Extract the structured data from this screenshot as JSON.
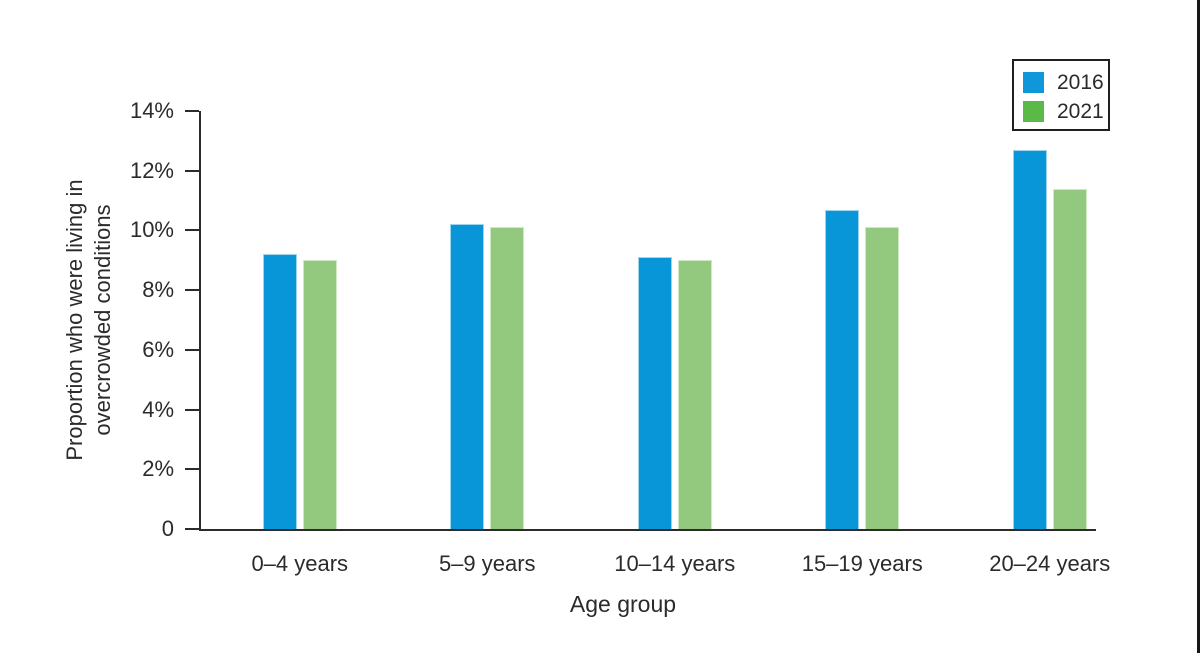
{
  "chart_data": {
    "type": "bar",
    "title": "",
    "categories": [
      "0–4 years",
      "5–9 years",
      "10–14 years",
      "15–19 years",
      "20–24 years"
    ],
    "series": [
      {
        "name": "2016",
        "color": "#0996d8",
        "edge_color": "#9fd4ee",
        "legend_swatch_color": "#0e97d9",
        "values": [
          9.2,
          10.2,
          9.1,
          10.7,
          12.7
        ]
      },
      {
        "name": "2021",
        "color": "#92c97e",
        "edge_color": "#cfe9c2",
        "legend_swatch_color": "#5ab947",
        "values": [
          9.0,
          10.1,
          9.0,
          10.1,
          11.4
        ]
      }
    ],
    "xlabel": "Age group",
    "ylabel": "Proportion who were living in\novercrowded conditions",
    "ylim": [
      0,
      14
    ],
    "ytick_step": 2,
    "ytick_labels": [
      "0",
      "2%",
      "4%",
      "6%",
      "8%",
      "10%",
      "12%",
      "14%"
    ],
    "grid": false,
    "legend_position": "top-right",
    "axis_color": "#2b2b2b",
    "legend_border_color": "#231f20"
  }
}
